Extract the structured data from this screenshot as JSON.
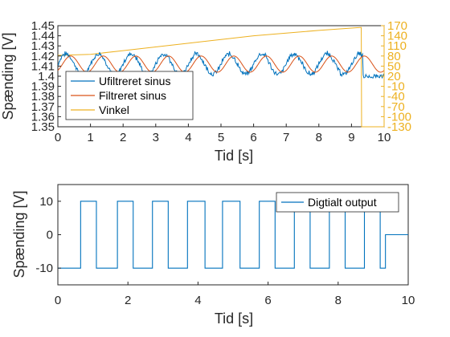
{
  "chart_data": [
    {
      "type": "line",
      "xlabel": "Tid [s]",
      "ylabel": "Spænding [V]",
      "xlim": [
        0,
        10
      ],
      "ylim": [
        1.35,
        1.45
      ],
      "xticks": [
        "0",
        "1",
        "2",
        "3",
        "4",
        "5",
        "6",
        "7",
        "8",
        "9",
        "10"
      ],
      "yticks": [
        "1.35",
        "1.36",
        "1.37",
        "1.38",
        "1.39",
        "1.4",
        "1.41",
        "1.42",
        "1.43",
        "1.44",
        "1.45"
      ],
      "right_axis": {
        "ylim": [
          -130,
          170
        ],
        "ticks": [
          "-130",
          "-100",
          "-70",
          "-40",
          "-10",
          "20",
          "50",
          "80",
          "110",
          "140",
          "170"
        ],
        "color": "#EDB120"
      },
      "legend": {
        "placement": "bottom-left",
        "entries": [
          "Ufiltreret sinus",
          "Filtreret sinus",
          "Vinkel"
        ]
      },
      "series": [
        {
          "name": "Ufiltreret sinus",
          "color": "#0072BD",
          "axis": "left",
          "description_values": {
            "mean": 1.412,
            "amplitude": 0.01,
            "cycles_per_s": 1.0,
            "noise": 0.004
          }
        },
        {
          "name": "Filtreret sinus",
          "color": "#D95319",
          "axis": "left",
          "description_values": {
            "mean": 1.412,
            "amplitude": 0.008,
            "cycles_per_s": 1.0
          }
        },
        {
          "name": "Vinkel",
          "color": "#EDB120",
          "axis": "right",
          "x": [
            0,
            1,
            2,
            3,
            4,
            5,
            6,
            7,
            8,
            9,
            9.3,
            9.31,
            10
          ],
          "y": [
            82,
            85,
            96,
            107,
            118,
            129,
            140,
            148,
            156,
            163,
            165,
            -130,
            -130
          ]
        }
      ]
    },
    {
      "type": "line",
      "xlabel": "Tid [s]",
      "ylabel": "Spænding [V]",
      "xlim": [
        0,
        10
      ],
      "ylim": [
        -15,
        15
      ],
      "xticks": [
        "0",
        "2",
        "4",
        "6",
        "8",
        "10"
      ],
      "yticks": [
        "-10",
        "0",
        "10"
      ],
      "legend": {
        "placement": "top-right",
        "entries": [
          "Digtialt output"
        ]
      },
      "series": [
        {
          "name": "Digtialt output",
          "color": "#0072BD",
          "x": [
            0,
            0.65,
            0.65,
            1.1,
            1.1,
            1.7,
            1.7,
            2.15,
            2.15,
            2.7,
            2.7,
            3.15,
            3.15,
            3.7,
            3.7,
            4.2,
            4.2,
            4.7,
            4.7,
            5.2,
            5.2,
            5.75,
            5.75,
            6.2,
            6.2,
            6.75,
            6.75,
            7.2,
            7.2,
            7.75,
            7.75,
            8.2,
            8.2,
            8.75,
            8.75,
            9.2,
            9.2,
            9.35,
            9.35,
            10
          ],
          "y": [
            -10,
            -10,
            10,
            10,
            -10,
            -10,
            10,
            10,
            -10,
            -10,
            10,
            10,
            -10,
            -10,
            10,
            10,
            -10,
            -10,
            10,
            10,
            -10,
            -10,
            10,
            10,
            -10,
            -10,
            10,
            10,
            -10,
            -10,
            10,
            10,
            -10,
            -10,
            10,
            10,
            -10,
            -10,
            0,
            0
          ]
        }
      ]
    }
  ]
}
